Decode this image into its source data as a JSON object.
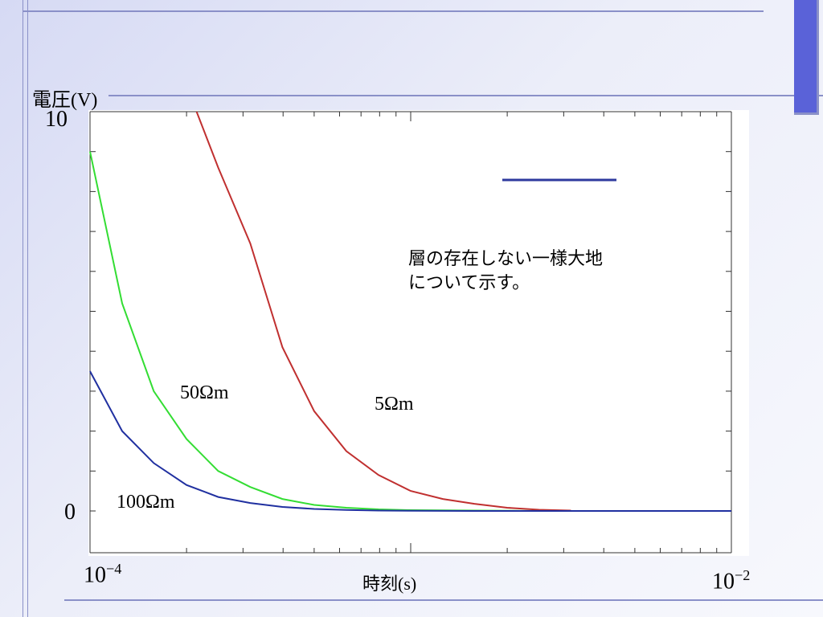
{
  "chart_data": {
    "type": "line",
    "ylabel": "電圧(V)",
    "xlabel": "時刻(s)",
    "y_ticks": {
      "top": "10",
      "bottom": "0"
    },
    "x_ticks": {
      "left_base": "10",
      "left_exp": "−4",
      "right_base": "10",
      "right_exp": "−2"
    },
    "xscale": "log",
    "xlim": [
      0.0001,
      0.01
    ],
    "ylim": [
      0,
      10
    ],
    "grid": false,
    "annotation": [
      "層の存在しない一様大地",
      "について示す。"
    ],
    "series": [
      {
        "name": "5Ωm",
        "color": "#c03030",
        "x": [
          0.000215,
          0.000251,
          0.000316,
          0.000398,
          0.0005,
          0.00063,
          0.000794,
          0.001,
          0.00126,
          0.00158,
          0.002,
          0.00251,
          0.00316
        ],
        "y": [
          10,
          8.6,
          6.7,
          4.1,
          2.5,
          1.5,
          0.9,
          0.5,
          0.3,
          0.18,
          0.08,
          0.03,
          0.01
        ]
      },
      {
        "name": "50Ωm",
        "color": "#33dd33",
        "x": [
          0.0001,
          0.000126,
          0.000158,
          0.0002,
          0.000251,
          0.000316,
          0.000398,
          0.0005,
          0.00063,
          0.000794,
          0.001,
          0.00158,
          0.00251,
          0.01
        ],
        "y": [
          9.0,
          5.2,
          3.0,
          1.8,
          1.0,
          0.6,
          0.3,
          0.15,
          0.08,
          0.04,
          0.02,
          0.01,
          0.0,
          0.0
        ]
      },
      {
        "name": "100Ωm",
        "color": "#2030a0",
        "x": [
          0.0001,
          0.000126,
          0.000158,
          0.0002,
          0.000251,
          0.000316,
          0.000398,
          0.0005,
          0.00063,
          0.000794,
          0.001,
          0.00158,
          0.00251,
          0.01
        ],
        "y": [
          3.5,
          2.0,
          1.2,
          0.65,
          0.35,
          0.2,
          0.1,
          0.05,
          0.025,
          0.01,
          0.005,
          0.0,
          0.0,
          0.0
        ]
      }
    ]
  },
  "colors": {
    "legend_line": "#2e3a9e",
    "accent_bar": "#5a62d8"
  }
}
